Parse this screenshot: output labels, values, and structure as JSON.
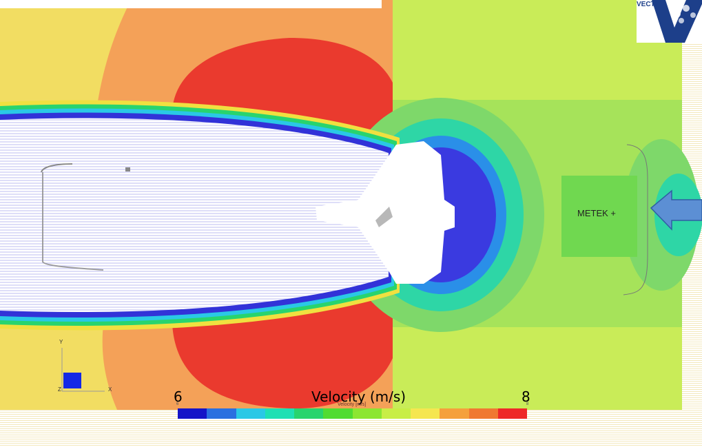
{
  "colorbar": {
    "title": "Velocity (m/s)",
    "subtitle": "Velocity [m/s]",
    "min_label": "6",
    "max_label": "8",
    "min_sub": "6",
    "max_sub": "8",
    "colors": [
      "#1414c8",
      "#2a6fe0",
      "#2ac8e6",
      "#1ee0b4",
      "#28d46e",
      "#50dc32",
      "#8ce632",
      "#c8ee46",
      "#f5e650",
      "#f5a03c",
      "#f07832",
      "#ee2828"
    ]
  },
  "annotation": {
    "sensor_label": "METEK +"
  },
  "axes": {
    "y": "Y",
    "x": "X",
    "z": "Z"
  },
  "logo": {
    "text": "VECTI"
  },
  "field_colors": {
    "background": "#c9ec58",
    "inflow_green": "#8fe05a",
    "outer_yellow": "#f2dd62",
    "orange": "#f4a158",
    "red": "#ea3a2e",
    "wake_blue": "#3a3ae0",
    "arrow_blue": "#5c8fd4"
  }
}
